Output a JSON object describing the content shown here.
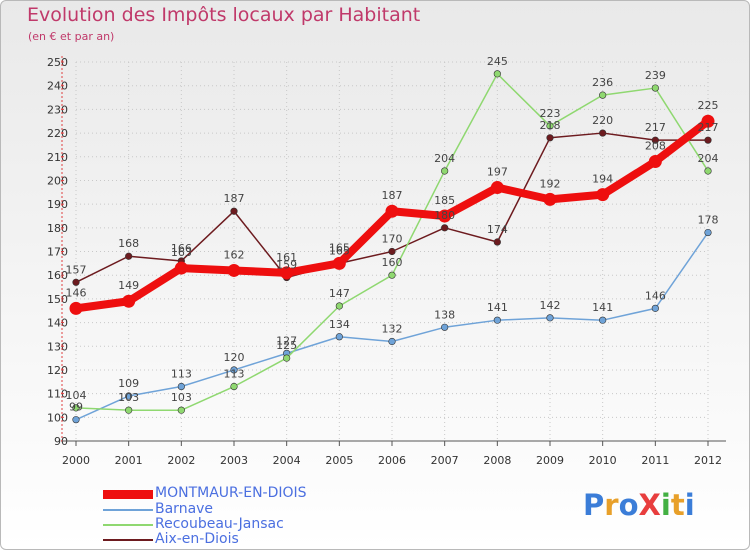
{
  "title": "Evolution des Impôts locaux par Habitant",
  "subtitle": "(en € et par an)",
  "logo": {
    "text": "ProXiti",
    "colors": [
      "#3b7dd8",
      "#e8a02a",
      "#3b7dd8",
      "#e83e3e",
      "#43b043",
      "#e8a02a",
      "#3b7dd8"
    ]
  },
  "chart_data": {
    "type": "line",
    "title": "Evolution des Impôts locaux par Habitant",
    "subtitle": "(en € et par an)",
    "xlabel": "",
    "ylabel": "",
    "x": [
      "2000",
      "2001",
      "2002",
      "2003",
      "2004",
      "2005",
      "2006",
      "2007",
      "2008",
      "2009",
      "2010",
      "2011",
      "2012"
    ],
    "ylim": [
      90,
      250
    ],
    "yticks": [
      90,
      100,
      110,
      120,
      130,
      140,
      150,
      160,
      170,
      180,
      190,
      200,
      210,
      220,
      230,
      240,
      250
    ],
    "grid": true,
    "legend_position": "bottom-left",
    "series": [
      {
        "name": "Aix-en-Diois",
        "color": "#6d1b1f",
        "values": [
          157,
          168,
          166,
          187,
          159,
          165,
          170,
          180,
          174,
          218,
          220,
          217,
          217
        ]
      },
      {
        "name": "Barnave",
        "color": "#6fa3d8",
        "values": [
          99,
          109,
          113,
          120,
          127,
          134,
          132,
          138,
          141,
          142,
          141,
          146,
          178
        ]
      },
      {
        "name": "Recoubeau-Jansac",
        "color": "#8fd870",
        "values": [
          104,
          103,
          103,
          113,
          125,
          147,
          160,
          204,
          245,
          223,
          236,
          239,
          204
        ]
      },
      {
        "name": "MONTMAUR-EN-DIOIS",
        "color": "#ee0f0f",
        "values": [
          146,
          149,
          163,
          162,
          161,
          165,
          187,
          185,
          197,
          192,
          194,
          208,
          225
        ]
      }
    ],
    "legend": [
      "MONTMAUR-EN-DIOIS",
      "Barnave",
      "Recoubeau-Jansac",
      "Aix-en-Diois"
    ]
  }
}
